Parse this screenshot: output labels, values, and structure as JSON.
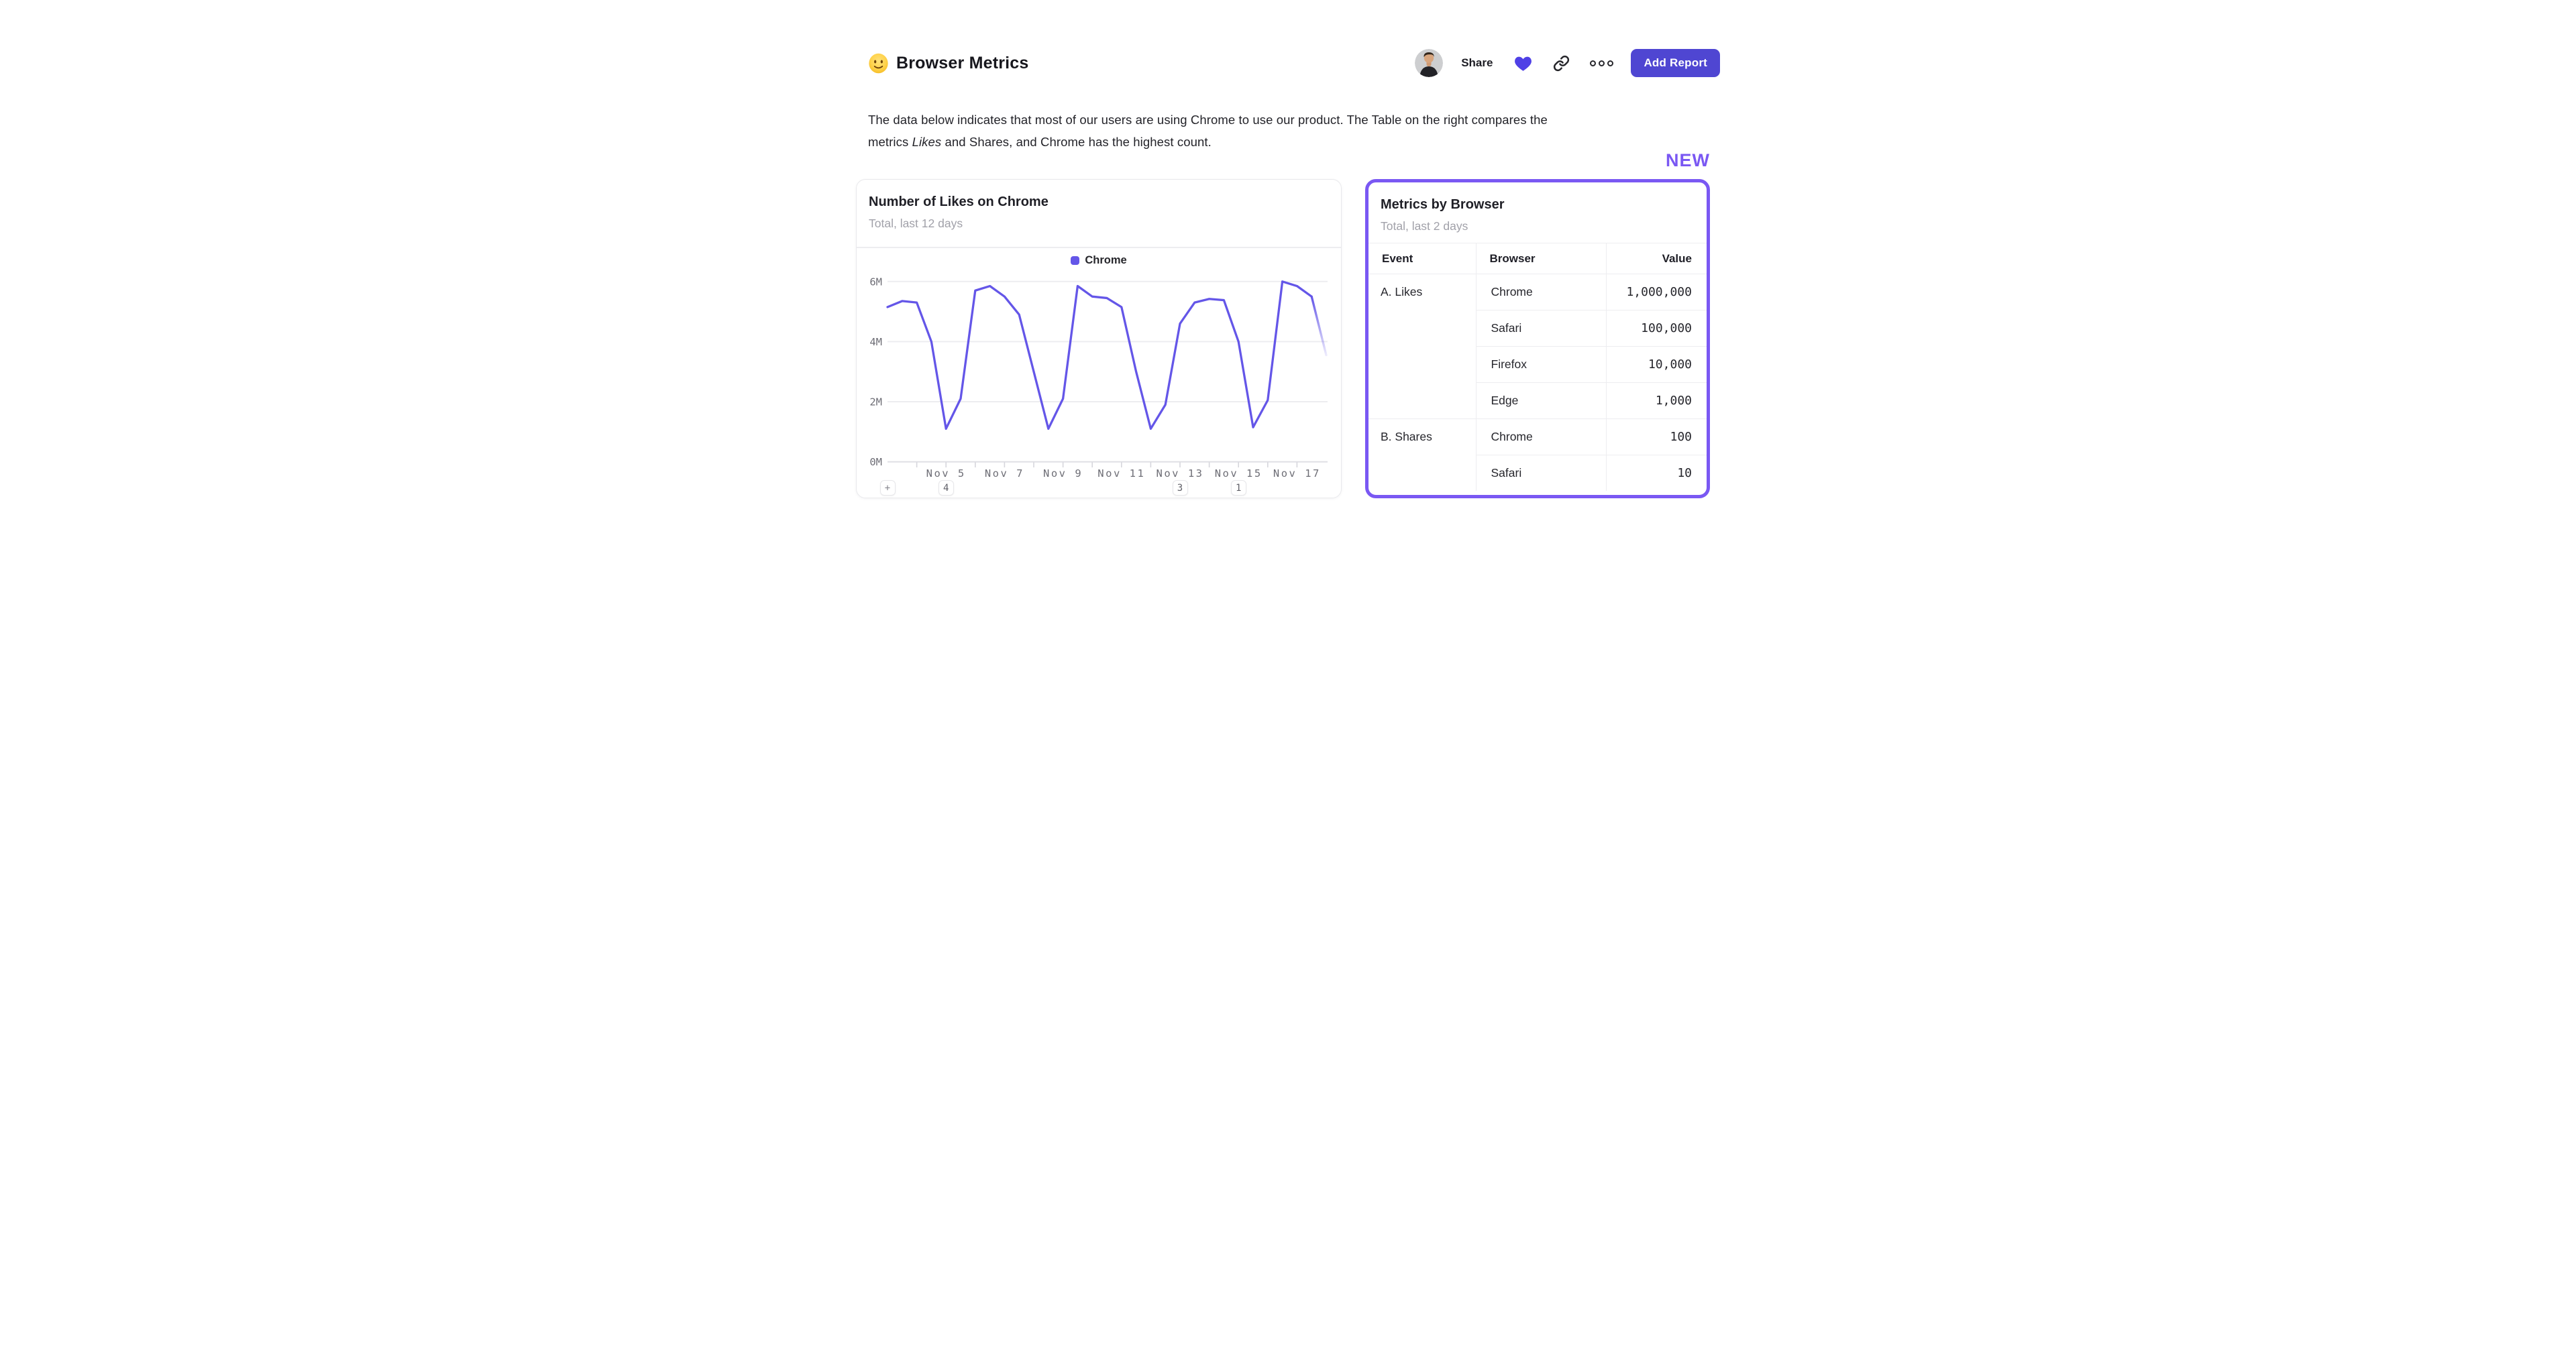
{
  "header": {
    "title_emoji": "🙂",
    "title": "Browser Metrics",
    "share_label": "Share",
    "add_report_label": "Add Report",
    "icons": [
      "avatar",
      "heart-icon",
      "link-icon",
      "more-options-icon"
    ]
  },
  "description": {
    "line1": "The data below indicates that most of our users are using Chrome to use our product. The Table on the right compares the",
    "line2_pre": "metrics ",
    "line2_italic": "Likes",
    "line2_post": " and Shares, and Chrome has the highest count."
  },
  "new_badge": "NEW",
  "left_card": {
    "title": "Number of Likes on Chrome",
    "subtitle": "Total, last 12 days",
    "legend": "Chrome",
    "annotations": [
      {
        "label": "+",
        "day": 0
      },
      {
        "label": "4",
        "day": 2
      },
      {
        "label": "3",
        "day": 10
      },
      {
        "label": "1",
        "day": 12
      }
    ]
  },
  "chart_data": {
    "type": "line",
    "title": "Number of Likes on Chrome",
    "subtitle": "Total, last 12 days",
    "legend_position": "top-center",
    "grid": "horizontal",
    "x_unit": "days since Nov 3 (two points per day)",
    "y_unit": "likes (millions)",
    "ylim": [
      0,
      6.6
    ],
    "y_ticks": [
      {
        "value": 0,
        "label": "0M"
      },
      {
        "value": 2,
        "label": "2M"
      },
      {
        "value": 4,
        "label": "4M"
      },
      {
        "value": 6,
        "label": "6M"
      }
    ],
    "x_ticks": [
      {
        "day": 2,
        "label": "Nov 5"
      },
      {
        "day": 4,
        "label": "Nov 7"
      },
      {
        "day": 6,
        "label": "Nov 9"
      },
      {
        "day": 8,
        "label": "Nov 11"
      },
      {
        "day": 10,
        "label": "Nov 13"
      },
      {
        "day": 12,
        "label": "Nov 15"
      },
      {
        "day": 14,
        "label": "Nov 17"
      }
    ],
    "minor_tick_days": [
      1,
      2,
      3,
      4,
      5,
      6,
      7,
      8,
      9,
      10,
      11,
      12,
      13,
      14
    ],
    "series": [
      {
        "name": "Chrome",
        "color": "#6456e8",
        "points": [
          [
            0,
            5.15
          ],
          [
            0.5,
            5.35
          ],
          [
            1,
            5.3
          ],
          [
            1.5,
            4.0
          ],
          [
            2,
            1.1
          ],
          [
            2.5,
            2.1
          ],
          [
            3,
            5.7
          ],
          [
            3.5,
            5.85
          ],
          [
            4,
            5.5
          ],
          [
            4.5,
            4.9
          ],
          [
            5,
            3.0
          ],
          [
            5.5,
            1.1
          ],
          [
            6,
            2.1
          ],
          [
            6.5,
            5.85
          ],
          [
            7,
            5.5
          ],
          [
            7.5,
            5.45
          ],
          [
            8,
            5.15
          ],
          [
            8.5,
            3.0
          ],
          [
            9,
            1.1
          ],
          [
            9.5,
            1.9
          ],
          [
            10,
            4.6
          ],
          [
            10.5,
            5.3
          ],
          [
            11,
            5.42
          ],
          [
            11.5,
            5.38
          ],
          [
            12,
            4.0
          ],
          [
            12.5,
            1.15
          ],
          [
            13,
            2.05
          ],
          [
            13.5,
            6.0
          ],
          [
            14,
            5.85
          ],
          [
            14.5,
            5.5
          ],
          [
            15,
            3.55
          ]
        ]
      }
    ],
    "fade_from_index": 29,
    "note": "last segment fades out (incomplete data for most recent half-day)"
  },
  "right_card": {
    "title": "Metrics by Browser",
    "subtitle": "Total, last 2 days",
    "table": {
      "headers": [
        "Event",
        "Browser",
        "Value"
      ],
      "groups": [
        {
          "event": "A. Likes",
          "rows": [
            [
              "Chrome",
              "1,000,000"
            ],
            [
              "Safari",
              "100,000"
            ],
            [
              "Firefox",
              "10,000"
            ],
            [
              "Edge",
              "1,000"
            ]
          ]
        },
        {
          "event": "B. Shares",
          "rows": [
            [
              "Chrome",
              "100"
            ],
            [
              "Safari",
              "10"
            ]
          ]
        }
      ]
    }
  },
  "colors": {
    "accent_button": "#4f46d2",
    "heart": "#4f40e6",
    "chart_line": "#6456e8",
    "new_and_border": "#7a58f3",
    "subtitle_gray": "#a1a1a9",
    "axis_gray": "#6e6e76",
    "gridline": "#ededf0",
    "text_dark": "#1f1f26"
  }
}
